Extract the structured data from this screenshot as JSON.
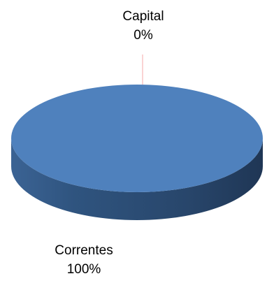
{
  "chart_data": {
    "type": "pie",
    "style": "3d",
    "title": "",
    "slices": [
      {
        "label": "Capital",
        "value": 0,
        "percent_label": "0%",
        "color": "#4f81bd"
      },
      {
        "label": "Correntes",
        "value": 100,
        "percent_label": "100%",
        "color": "#4f81bd"
      }
    ],
    "leader_line_color": "#f4a7a7",
    "legend": "none"
  }
}
